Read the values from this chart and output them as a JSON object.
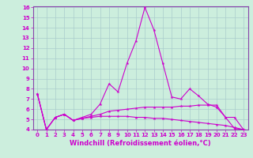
{
  "xlabel": "Windchill (Refroidissement éolien,°C)",
  "background_color": "#cceedd",
  "grid_color": "#aacccc",
  "line_color": "#cc00cc",
  "spine_color": "#8844aa",
  "x_hours": [
    0,
    1,
    2,
    3,
    4,
    5,
    6,
    7,
    8,
    9,
    10,
    11,
    12,
    13,
    14,
    15,
    16,
    17,
    18,
    19,
    20,
    21,
    22,
    23
  ],
  "line1": [
    7.5,
    4.0,
    5.2,
    5.5,
    4.9,
    5.2,
    5.5,
    6.5,
    8.5,
    7.7,
    10.5,
    12.7,
    16.0,
    13.8,
    10.5,
    7.2,
    7.0,
    8.0,
    7.3,
    6.5,
    6.2,
    5.2,
    4.1,
    4.0
  ],
  "line2": [
    7.5,
    4.0,
    5.2,
    5.5,
    4.9,
    5.1,
    5.3,
    5.5,
    5.8,
    5.9,
    6.0,
    6.1,
    6.2,
    6.2,
    6.2,
    6.2,
    6.3,
    6.3,
    6.4,
    6.4,
    6.4,
    5.2,
    5.2,
    4.0
  ],
  "line3": [
    7.5,
    4.0,
    5.2,
    5.5,
    4.9,
    5.1,
    5.2,
    5.3,
    5.3,
    5.3,
    5.3,
    5.2,
    5.2,
    5.1,
    5.1,
    5.0,
    4.9,
    4.8,
    4.7,
    4.6,
    4.5,
    4.4,
    4.2,
    4.0
  ],
  "ylim": [
    4,
    16
  ],
  "xlim": [
    -0.5,
    23.5
  ],
  "yticks": [
    4,
    5,
    6,
    7,
    8,
    9,
    10,
    11,
    12,
    13,
    14,
    15,
    16
  ],
  "xticks": [
    0,
    1,
    2,
    3,
    4,
    5,
    6,
    7,
    8,
    9,
    10,
    11,
    12,
    13,
    14,
    15,
    16,
    17,
    18,
    19,
    20,
    21,
    22,
    23
  ],
  "tick_fontsize": 5,
  "xlabel_fontsize": 6
}
